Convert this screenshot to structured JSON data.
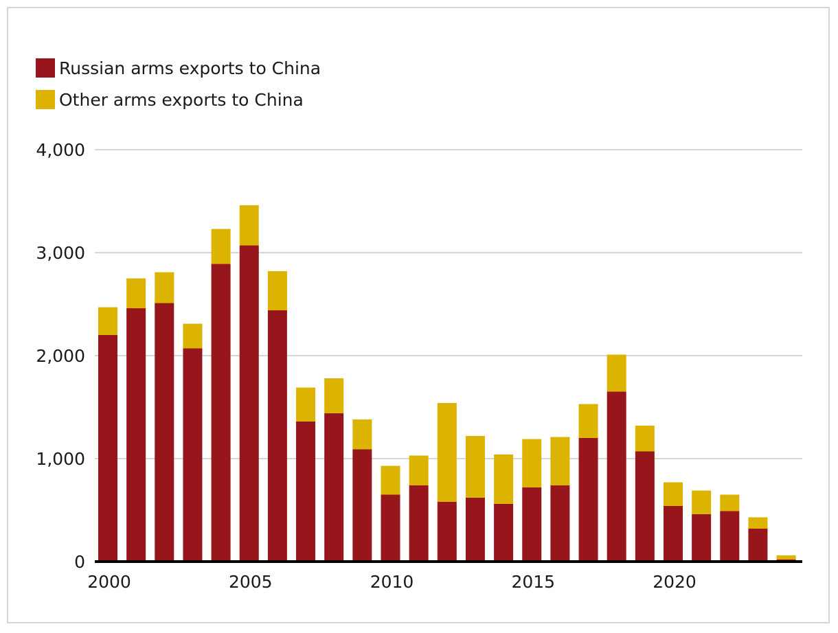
{
  "chart_data": {
    "type": "bar",
    "stacked": true,
    "title": "",
    "xlabel": "",
    "ylabel": "",
    "ylim": [
      0,
      4000
    ],
    "yticks": [
      0,
      1000,
      2000,
      3000,
      4000
    ],
    "ytick_labels": [
      "0",
      "1,000",
      "2,000",
      "3,000",
      "4,000"
    ],
    "xtick_labels": [
      "2000",
      "2005",
      "2010",
      "2015",
      "2020"
    ],
    "grid": true,
    "legend_position": "top-left",
    "categories": [
      2000,
      2001,
      2002,
      2003,
      2004,
      2005,
      2006,
      2007,
      2008,
      2009,
      2010,
      2011,
      2012,
      2013,
      2014,
      2015,
      2016,
      2017,
      2018,
      2019,
      2020,
      2021,
      2022,
      2023,
      2024
    ],
    "series": [
      {
        "name": "Russian arms exports to China",
        "color": "#96161c",
        "values": [
          2200,
          2460,
          2510,
          2070,
          2890,
          3070,
          2440,
          1360,
          1440,
          1090,
          650,
          740,
          580,
          620,
          560,
          720,
          740,
          1200,
          1650,
          1070,
          540,
          460,
          490,
          320,
          20
        ]
      },
      {
        "name": "Other arms exports to China",
        "color": "#dcb400",
        "values": [
          270,
          290,
          300,
          240,
          340,
          390,
          380,
          330,
          340,
          290,
          280,
          290,
          960,
          600,
          480,
          470,
          470,
          330,
          360,
          250,
          230,
          230,
          160,
          110,
          40
        ]
      }
    ]
  }
}
